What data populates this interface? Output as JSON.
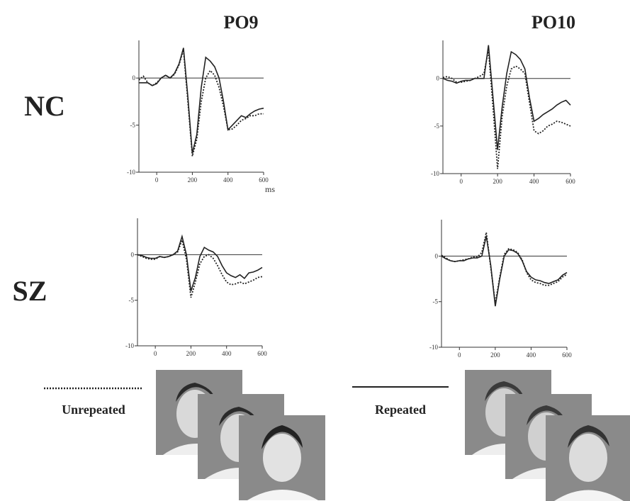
{
  "columns": [
    "PO9",
    "PO10"
  ],
  "rows": [
    "NC",
    "SZ"
  ],
  "legend": [
    {
      "name": "Unrepeated",
      "linestyle": "dotted"
    },
    {
      "name": "Repeated",
      "linestyle": "solid"
    }
  ],
  "chart_data": [
    {
      "type": "line",
      "xlabel": "ms",
      "x": [
        -100,
        -75,
        -50,
        -25,
        0,
        25,
        50,
        75,
        100,
        125,
        150,
        175,
        200,
        225,
        250,
        275,
        300,
        325,
        350,
        375,
        400,
        425,
        450,
        475,
        500,
        525,
        550,
        575,
        600
      ],
      "xlim": [
        -100,
        600
      ],
      "ylim": [
        -10,
        4
      ],
      "xticks": [
        0,
        200,
        400,
        600
      ],
      "yticks": [
        -10,
        -5,
        0
      ],
      "series": [
        {
          "linestyle": "dotted",
          "color": "#222222",
          "values": [
            -0.2,
            0.2,
            -0.5,
            -0.8,
            -0.5,
            0,
            0.3,
            0,
            0.4,
            1.4,
            3,
            -2.5,
            -8.3,
            -6.5,
            -2.5,
            0,
            0.8,
            0.3,
            -1,
            -3,
            -5.5,
            -5.4,
            -5,
            -4.5,
            -4.3,
            -4,
            -4,
            -3.8,
            -3.8
          ]
        },
        {
          "linestyle": "solid",
          "color": "#222222",
          "values": [
            -0.5,
            -0.5,
            -0.5,
            -0.8,
            -0.6,
            0,
            0.3,
            0,
            0.5,
            1.5,
            3.2,
            -2,
            -8,
            -6,
            -1,
            2.2,
            1.8,
            1.2,
            0,
            -2.5,
            -5.5,
            -5,
            -4.5,
            -4,
            -4.2,
            -3.8,
            -3.5,
            -3.3,
            -3.2
          ]
        }
      ]
    },
    {
      "type": "line",
      "x": [
        -100,
        -75,
        -50,
        -25,
        0,
        25,
        50,
        75,
        100,
        125,
        150,
        175,
        200,
        225,
        250,
        275,
        300,
        325,
        350,
        375,
        400,
        425,
        450,
        475,
        500,
        525,
        550,
        575,
        600
      ],
      "xlim": [
        -100,
        600
      ],
      "ylim": [
        -10,
        4
      ],
      "xticks": [
        0,
        200,
        400,
        600
      ],
      "yticks": [
        -10,
        -5,
        0
      ],
      "series": [
        {
          "linestyle": "dotted",
          "color": "#222222",
          "values": [
            0.1,
            0.2,
            0,
            -0.4,
            -0.4,
            -0.3,
            -0.2,
            0,
            0.2,
            0.5,
            3,
            -3,
            -9.5,
            -4,
            -0.8,
            1,
            1.3,
            1,
            0.5,
            -2.5,
            -5.5,
            -5.8,
            -5.5,
            -5,
            -4.8,
            -4.5,
            -4.6,
            -4.8,
            -5
          ]
        },
        {
          "linestyle": "solid",
          "color": "#222222",
          "values": [
            0,
            -0.2,
            -0.3,
            -0.5,
            -0.3,
            -0.2,
            -0.2,
            0,
            0,
            0,
            3.5,
            -2,
            -7.5,
            -3,
            0.5,
            2.8,
            2.5,
            2,
            1,
            -2,
            -4.5,
            -4.2,
            -3.8,
            -3.5,
            -3.2,
            -2.8,
            -2.5,
            -2.3,
            -2.8
          ]
        }
      ]
    },
    {
      "type": "line",
      "x": [
        -100,
        -75,
        -50,
        -25,
        0,
        25,
        50,
        75,
        100,
        125,
        150,
        175,
        200,
        225,
        250,
        275,
        300,
        325,
        350,
        375,
        400,
        425,
        450,
        475,
        500,
        525,
        550,
        575,
        600
      ],
      "xlim": [
        -100,
        600
      ],
      "ylim": [
        -10,
        4
      ],
      "xticks": [
        0,
        200,
        400,
        600
      ],
      "yticks": [
        -10,
        -5,
        0
      ],
      "series": [
        {
          "linestyle": "dotted",
          "color": "#222222",
          "values": [
            0,
            -0.2,
            -0.4,
            -0.5,
            -0.5,
            -0.2,
            -0.3,
            -0.2,
            0,
            0.3,
            1.6,
            -0.5,
            -4.7,
            -3,
            -1,
            -0.2,
            0,
            -0.4,
            -1.2,
            -2.2,
            -3,
            -3.3,
            -3.2,
            -3,
            -3.2,
            -3,
            -2.8,
            -2.5,
            -2.4
          ]
        },
        {
          "linestyle": "solid",
          "color": "#222222",
          "values": [
            0,
            -0.1,
            -0.3,
            -0.4,
            -0.4,
            -0.2,
            -0.3,
            -0.2,
            0,
            0.4,
            2,
            0,
            -4,
            -2.5,
            -0.2,
            0.8,
            0.5,
            0.3,
            -0.2,
            -1.2,
            -2,
            -2.3,
            -2.5,
            -2.2,
            -2.6,
            -2,
            -1.9,
            -1.7,
            -1.4
          ]
        }
      ]
    },
    {
      "type": "line",
      "x": [
        -100,
        -75,
        -50,
        -25,
        0,
        25,
        50,
        75,
        100,
        125,
        150,
        175,
        200,
        225,
        250,
        275,
        300,
        325,
        350,
        375,
        400,
        425,
        450,
        475,
        500,
        525,
        550,
        575,
        600
      ],
      "xlim": [
        -100,
        600
      ],
      "ylim": [
        -10,
        4
      ],
      "xticks": [
        0,
        200,
        400,
        600
      ],
      "yticks": [
        -10,
        -5,
        0
      ],
      "series": [
        {
          "linestyle": "dotted",
          "color": "#222222",
          "values": [
            0.1,
            -0.2,
            -0.5,
            -0.6,
            -0.5,
            -0.4,
            -0.3,
            -0.1,
            -0.1,
            0.4,
            2.6,
            -1.2,
            -5.2,
            -2.3,
            0.2,
            0.8,
            0.7,
            0.4,
            -0.4,
            -1.8,
            -2.6,
            -2.9,
            -3,
            -3.2,
            -3.2,
            -3,
            -2.8,
            -2.3,
            -2
          ]
        },
        {
          "linestyle": "solid",
          "color": "#222222",
          "values": [
            0,
            -0.3,
            -0.5,
            -0.6,
            -0.5,
            -0.5,
            -0.3,
            -0.2,
            -0.2,
            0,
            2.2,
            -1,
            -5.5,
            -2.5,
            0,
            0.7,
            0.6,
            0.3,
            -0.5,
            -1.7,
            -2.3,
            -2.6,
            -2.7,
            -2.9,
            -3,
            -2.8,
            -2.6,
            -2.1,
            -1.8
          ]
        }
      ]
    }
  ]
}
